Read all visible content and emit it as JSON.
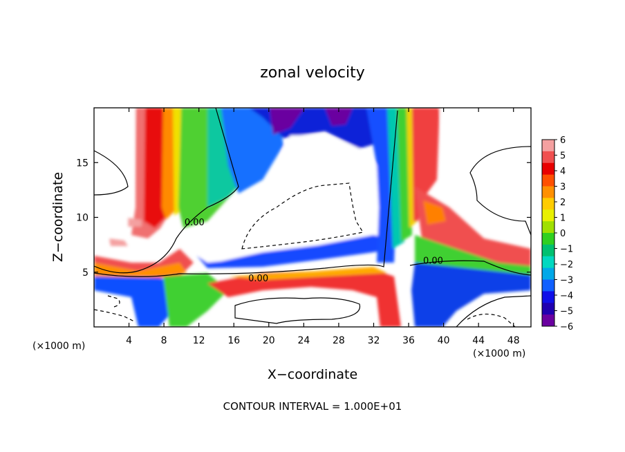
{
  "chart_data": {
    "type": "heatmap",
    "title": "zonal velocity",
    "xlabel": "X−coordinate",
    "ylabel": "Z−coordinate",
    "x_unit_left": "(×1000 m)",
    "x_unit_right": "(×1000 m)",
    "footer": "CONTOUR INTERVAL = 1.000E+01",
    "xlim": [
      0,
      50
    ],
    "ylim": [
      0,
      20
    ],
    "x_ticks": [
      4,
      8,
      12,
      16,
      20,
      24,
      28,
      32,
      36,
      40,
      44,
      48
    ],
    "y_ticks": [
      5,
      10,
      15
    ],
    "contour_labels": [
      {
        "text": "0.00",
        "x": 11.5,
        "y": 9.4
      },
      {
        "text": "0.00",
        "x": 18.8,
        "y": 4.3
      },
      {
        "text": "0.00",
        "x": 38.8,
        "y": 5.9
      }
    ],
    "colorbar": {
      "ticks": [
        "6",
        "5",
        "4",
        "3",
        "2",
        "1",
        "0",
        "−1",
        "−2",
        "−3",
        "−4",
        "−5",
        "−6"
      ],
      "colors": [
        "#f4a0a0",
        "#f05050",
        "#e80000",
        "#ff5000",
        "#ff9000",
        "#ffcc00",
        "#e8f000",
        "#a0e000",
        "#30d020",
        "#00c070",
        "#00d8c0",
        "#00a8e8",
        "#1060ff",
        "#1010e8",
        "#2000b0",
        "#6a00a0"
      ]
    }
  }
}
